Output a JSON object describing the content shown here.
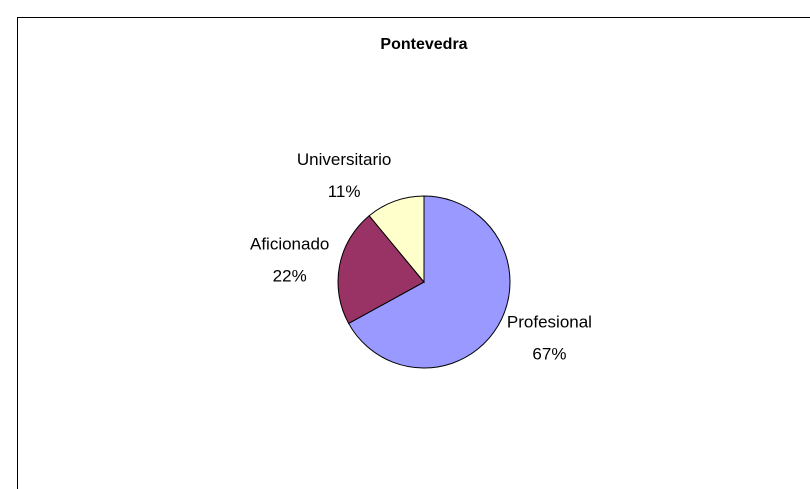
{
  "chart_data": {
    "type": "pie",
    "title": "Pontevedra",
    "categories": [
      "Profesional",
      "Aficionado",
      "Universitario"
    ],
    "values": [
      67,
      22,
      11
    ],
    "value_labels": [
      "67%",
      "22%",
      "11%"
    ],
    "colors": [
      "#9999ff",
      "#993366",
      "#ffffcc"
    ]
  }
}
